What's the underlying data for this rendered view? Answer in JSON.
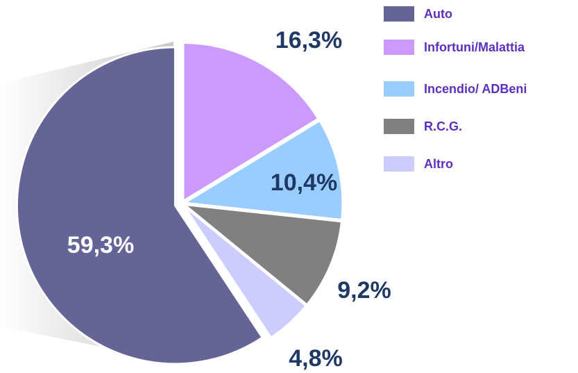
{
  "chart_data": {
    "type": "pie",
    "categories": [
      "Auto",
      "Infortuni/Malattia",
      "Incendio/ ADBeni",
      "R.C.G.",
      "Altro"
    ],
    "values": [
      59.3,
      16.3,
      10.4,
      9.2,
      4.8
    ],
    "value_labels": [
      "59,3%",
      "16,3%",
      "10,4%",
      "9,2%",
      "4,8%"
    ],
    "colors": [
      "#646496",
      "#cc99ff",
      "#99ccff",
      "#808080",
      "#ccccff"
    ],
    "legend": "right"
  }
}
